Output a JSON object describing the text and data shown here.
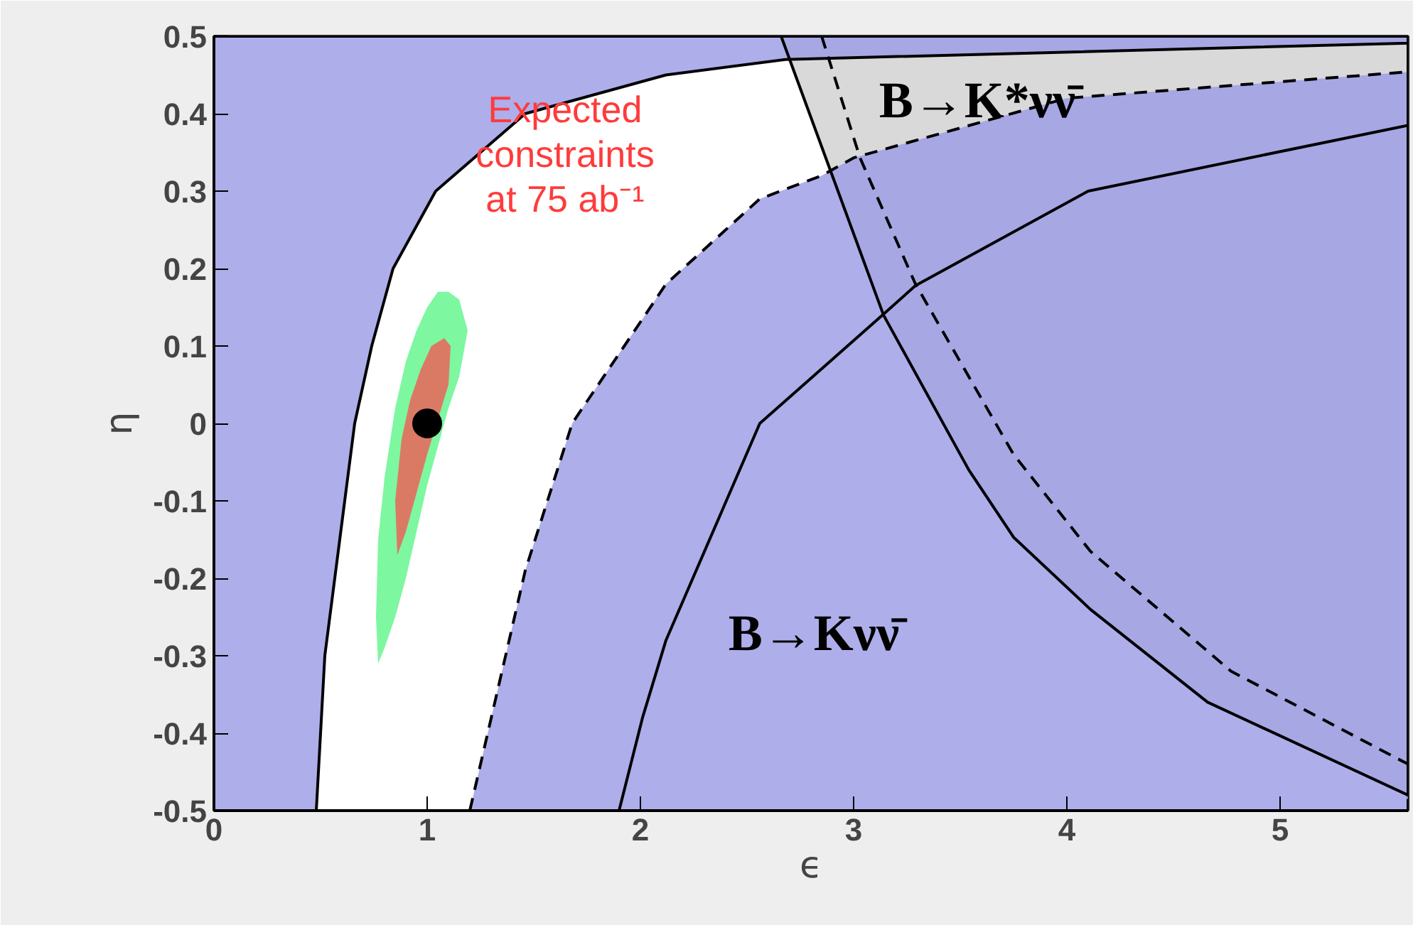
{
  "chart_data": {
    "type": "line",
    "xlabel": "ϵ",
    "ylabel": "η",
    "xlim": [
      0,
      5.6
    ],
    "ylim": [
      -0.5,
      0.5
    ],
    "xticks": [
      0,
      1,
      2,
      3,
      4,
      5
    ],
    "yticks": [
      -0.5,
      -0.4,
      -0.3,
      -0.2,
      -0.1,
      0,
      0.1,
      0.2,
      0.3,
      0.4,
      0.5
    ],
    "grid": false,
    "annotations": [
      "Expected\nconstraints\nat 75 ab⁻¹",
      "B→K*νν̄",
      "B→Kνν̄"
    ],
    "series": [
      {
        "type": "area",
        "color": "#d9d9d9",
        "line_style": "solid",
        "x": [
          2.66,
          2.9,
          3.14,
          3.54,
          3.75,
          4.11,
          4.66,
          5.6,
          5.6
        ],
        "values": [
          0.5,
          0.32,
          0.14,
          -0.06,
          -0.147,
          -0.24,
          -0.36,
          -0.48,
          0.5
        ]
      },
      {
        "type": "area",
        "color": "#9a9ae6",
        "line_style": "solid",
        "x": [
          0,
          0.48,
          0.52,
          0.66,
          0.74,
          0.84,
          1.04,
          1.46,
          2.12,
          2.68,
          5.6,
          5.6,
          0
        ],
        "values": [
          -0.5,
          -0.5,
          -0.3,
          0,
          0.1,
          0.2,
          0.3,
          0.4,
          0.45,
          0.47,
          0.491,
          0.5,
          0.5
        ]
      },
      {
        "type": "area",
        "color": "#9a9ae6",
        "line_style": "dashed",
        "x": [
          1.2,
          1.46,
          1.68,
          2.12,
          2.56,
          2.85,
          3.0,
          4.0,
          5.6,
          5.6
        ],
        "values": [
          -0.5,
          -0.19,
          0,
          0.18,
          0.29,
          0.32,
          0.343,
          0.42,
          0.454,
          -0.5
        ]
      },
      {
        "type": "area",
        "color": "#5ef58a",
        "x": [
          0.77,
          0.76,
          0.77,
          0.8,
          0.85,
          0.9,
          0.95,
          1.0,
          1.05,
          1.1,
          1.15,
          1.19,
          1.15,
          1.1,
          1.05,
          1.0,
          0.95,
          0.9,
          0.85,
          0.8
        ],
        "values": [
          -0.31,
          -0.25,
          -0.15,
          -0.07,
          0.02,
          0.08,
          0.12,
          0.15,
          0.17,
          0.17,
          0.16,
          0.12,
          0.06,
          0.02,
          -0.03,
          -0.08,
          -0.14,
          -0.2,
          -0.25,
          -0.29
        ]
      },
      {
        "type": "area",
        "color": "#f25a55",
        "x": [
          0.86,
          0.85,
          0.88,
          0.92,
          0.97,
          1.02,
          1.08,
          1.11,
          1.1,
          1.0,
          0.95,
          0.9
        ],
        "values": [
          -0.17,
          -0.1,
          -0.02,
          0.03,
          0.07,
          0.1,
          0.11,
          0.1,
          0.05,
          -0.04,
          -0.09,
          -0.14
        ]
      },
      {
        "color": "#000000",
        "line_style": "solid",
        "x": [
          1.9,
          2.01,
          2.12,
          2.56,
          3.14,
          3.29,
          4.1,
          5.6
        ],
        "values": [
          -0.5,
          -0.38,
          -0.28,
          0,
          0.141,
          0.178,
          0.3,
          0.385
        ]
      },
      {
        "color": "#000000",
        "line_style": "dashed",
        "x": [
          2.85,
          3.03,
          3.29,
          3.75,
          4.11,
          4.77,
          5.6
        ],
        "values": [
          0.5,
          0.343,
          0.18,
          -0.04,
          -0.165,
          -0.32,
          -0.44
        ]
      },
      {
        "type": "scatter",
        "color": "#000000",
        "marker": "circle",
        "x": [
          1
        ],
        "values": [
          0
        ]
      }
    ]
  }
}
